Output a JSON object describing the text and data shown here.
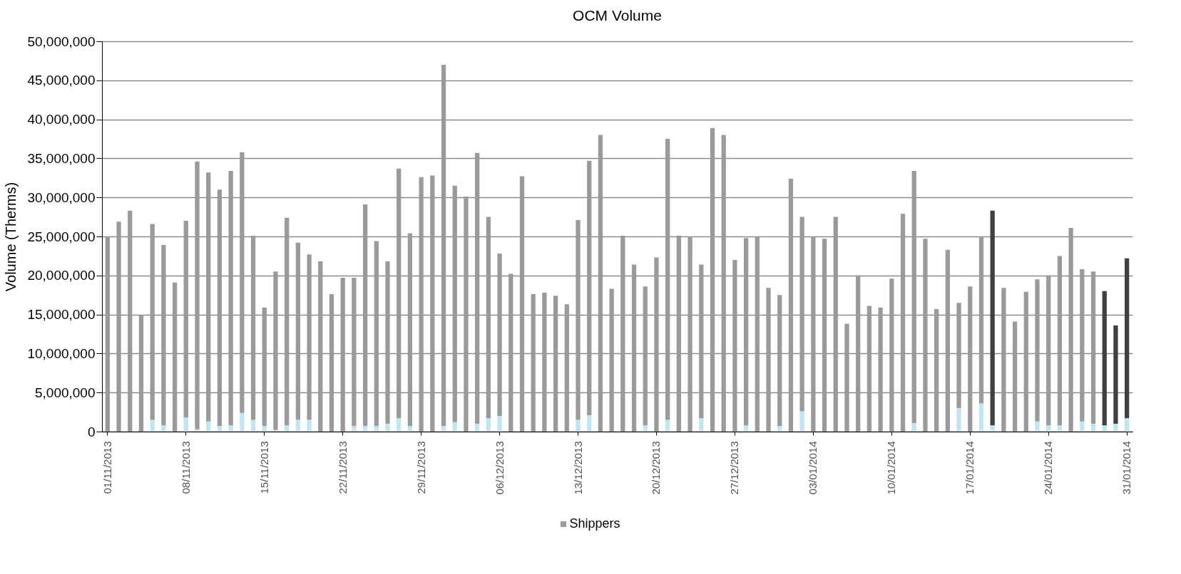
{
  "chart_data": {
    "type": "bar",
    "title": "OCM Volume",
    "ylabel": "Volume (Therms)",
    "stacked": true,
    "grid": "y",
    "legend": "bottom",
    "categories": [
      "01/11/2013",
      null,
      null,
      null,
      null,
      null,
      null,
      "08/11/2013",
      null,
      null,
      null,
      null,
      null,
      null,
      "15/11/2013",
      null,
      null,
      null,
      null,
      null,
      null,
      "22/11/2013",
      null,
      null,
      null,
      null,
      null,
      null,
      "29/11/2013",
      null,
      null,
      null,
      null,
      null,
      null,
      "06/12/2013",
      null,
      null,
      null,
      null,
      null,
      null,
      "13/12/2013",
      null,
      null,
      null,
      null,
      null,
      null,
      "20/12/2013",
      null,
      null,
      null,
      null,
      null,
      null,
      "27/12/2013",
      null,
      null,
      null,
      null,
      null,
      null,
      "03/01/2014",
      null,
      null,
      null,
      null,
      null,
      null,
      "10/01/2014",
      null,
      null,
      null,
      null,
      null,
      null,
      "17/01/2014",
      null,
      null,
      null,
      null,
      null,
      null,
      "24/01/2014",
      null,
      null,
      null,
      null,
      null,
      null,
      "31/01/2014"
    ],
    "ylim": [
      0,
      50000000
    ],
    "yticks": [
      0,
      {
        "value": 5000000,
        "label": "5,000,000"
      },
      {
        "value": 10000000,
        "label": "10,000,000"
      },
      {
        "value": 15000000,
        "label": "15,000,000"
      },
      {
        "value": 20000000,
        "label": "20,000,000"
      },
      {
        "value": 25000000,
        "label": "25,000,000"
      },
      {
        "value": 30000000,
        "label": "30,000,000"
      },
      {
        "value": 35000000,
        "label": "35,000,000"
      },
      {
        "value": 40000000,
        "label": "40,000,000"
      },
      {
        "value": 45000000,
        "label": "45,000,000"
      },
      {
        "value": 50000000,
        "label": "50,000,000"
      }
    ],
    "series": [
      {
        "color": "#bfe6f2",
        "values": [
          0,
          0,
          0,
          0,
          1500000,
          800000,
          0,
          1800000,
          300000,
          1300000,
          700000,
          800000,
          2400000,
          1500000,
          700000,
          200000,
          800000,
          1500000,
          1500000,
          0,
          0,
          0,
          700000,
          700000,
          700000,
          1000000,
          1700000,
          700000,
          0,
          0,
          700000,
          1200000,
          0,
          1000000,
          1700000,
          2000000,
          0,
          0,
          0,
          0,
          0,
          0,
          1500000,
          2100000,
          0,
          0,
          0,
          0,
          800000,
          0,
          1500000,
          0,
          0,
          1700000,
          0,
          0,
          0,
          800000,
          0,
          0,
          700000,
          0,
          2600000,
          0,
          0,
          0,
          0,
          0,
          0,
          0,
          0,
          0,
          1100000,
          0,
          0,
          0,
          3000000,
          0,
          3600000,
          800000,
          0,
          0,
          0,
          1300000,
          800000,
          800000,
          0,
          1300000,
          1000000,
          800000,
          1000000,
          1700000
        ]
      },
      {
        "name": "Shippers",
        "color": "#9a9a9a",
        "colors": [
          "#9a9a9a",
          "#9a9a9a",
          "#9a9a9a",
          "#9a9a9a",
          "#9a9a9a",
          "#9a9a9a",
          "#9a9a9a",
          "#9a9a9a",
          "#9a9a9a",
          "#9a9a9a",
          "#9a9a9a",
          "#9a9a9a",
          "#9a9a9a",
          "#9a9a9a",
          "#9a9a9a",
          "#9a9a9a",
          "#9a9a9a",
          "#9a9a9a",
          "#9a9a9a",
          "#9a9a9a",
          "#9a9a9a",
          "#9a9a9a",
          "#9a9a9a",
          "#9a9a9a",
          "#9a9a9a",
          "#9a9a9a",
          "#9a9a9a",
          "#9a9a9a",
          "#9a9a9a",
          "#9a9a9a",
          "#9a9a9a",
          "#9a9a9a",
          "#9a9a9a",
          "#9a9a9a",
          "#9a9a9a",
          "#9a9a9a",
          "#9a9a9a",
          "#9a9a9a",
          "#9a9a9a",
          "#9a9a9a",
          "#9a9a9a",
          "#9a9a9a",
          "#9a9a9a",
          "#9a9a9a",
          "#9a9a9a",
          "#9a9a9a",
          "#9a9a9a",
          "#9a9a9a",
          "#9a9a9a",
          "#9a9a9a",
          "#9a9a9a",
          "#9a9a9a",
          "#9a9a9a",
          "#9a9a9a",
          "#9a9a9a",
          "#9a9a9a",
          "#9a9a9a",
          "#9a9a9a",
          "#9a9a9a",
          "#9a9a9a",
          "#9a9a9a",
          "#9a9a9a",
          "#9a9a9a",
          "#9a9a9a",
          "#9a9a9a",
          "#9a9a9a",
          "#9a9a9a",
          "#9a9a9a",
          "#9a9a9a",
          "#9a9a9a",
          "#9a9a9a",
          "#9a9a9a",
          "#9a9a9a",
          "#9a9a9a",
          "#9a9a9a",
          "#9a9a9a",
          "#9a9a9a",
          "#9a9a9a",
          "#9a9a9a",
          "#404040",
          "#9a9a9a",
          "#9a9a9a",
          "#9a9a9a",
          "#9a9a9a",
          "#9a9a9a",
          "#9a9a9a",
          "#9a9a9a",
          "#9a9a9a",
          "#9a9a9a",
          "#404040",
          "#404040",
          "#404040"
        ],
        "values": [
          25000000,
          26900000,
          28300000,
          14900000,
          25100000,
          23100000,
          19100000,
          25200000,
          34300000,
          31900000,
          30300000,
          32600000,
          33400000,
          23600000,
          15200000,
          20300000,
          26600000,
          22700000,
          21200000,
          21800000,
          17600000,
          19700000,
          19000000,
          28400000,
          23700000,
          20800000,
          32000000,
          24700000,
          32600000,
          32800000,
          46300000,
          30300000,
          30100000,
          34700000,
          25800000,
          20800000,
          20200000,
          32700000,
          17600000,
          17800000,
          17400000,
          16300000,
          25600000,
          32600000,
          38000000,
          18300000,
          25100000,
          21400000,
          17800000,
          22300000,
          36000000,
          25100000,
          25000000,
          19700000,
          38900000,
          38000000,
          22000000,
          24000000,
          25000000,
          18400000,
          16800000,
          32400000,
          24900000,
          25000000,
          24700000,
          27500000,
          13800000,
          20000000,
          16100000,
          15900000,
          19600000,
          27900000,
          32300000,
          24700000,
          15700000,
          23300000,
          13500000,
          18600000,
          21400000,
          27500000,
          18400000,
          14100000,
          17900000,
          18200000,
          19200000,
          21700000,
          26100000,
          19500000,
          19500000,
          17200000,
          12600000,
          20500000
        ]
      }
    ]
  }
}
